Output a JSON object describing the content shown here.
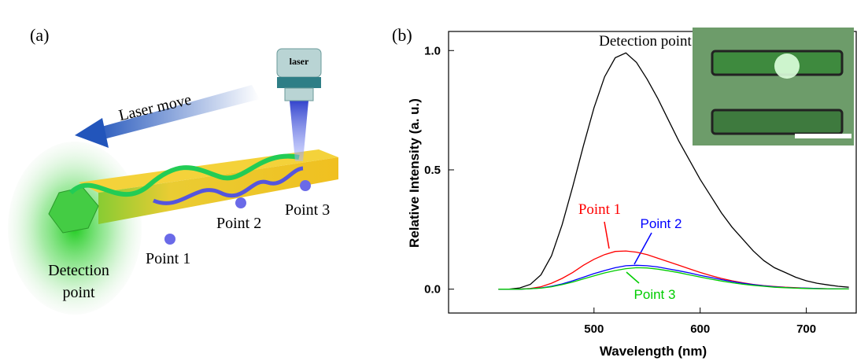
{
  "diagram": {
    "panel_label": "(a)",
    "device_label": "laser",
    "motion_label": "Laser move",
    "points": [
      "Point 1",
      "Point 2",
      "Point 3"
    ],
    "detection_label": [
      "Detection",
      "point"
    ]
  },
  "chart_data": {
    "type": "line",
    "panel_label": "(b)",
    "x_label": "Wavelength (nm)",
    "y_label": "Relative Intensity (a. u.)",
    "xlim": [
      363,
      747
    ],
    "ylim": [
      -0.1,
      1.08
    ],
    "xticks": [
      500,
      600,
      700
    ],
    "yticks": [
      {
        "value": 0,
        "label": "0.0"
      },
      0.5,
      {
        "value": 1,
        "label": "1.0"
      }
    ],
    "x": [
      410,
      420,
      430,
      440,
      450,
      460,
      470,
      480,
      490,
      500,
      510,
      520,
      530,
      540,
      550,
      560,
      570,
      580,
      590,
      600,
      610,
      620,
      630,
      640,
      650,
      660,
      670,
      680,
      690,
      700,
      710,
      720,
      730,
      740
    ],
    "series": [
      {
        "name": "Detection point",
        "color": "#000000",
        "values": [
          0,
          0,
          0.005,
          0.02,
          0.06,
          0.14,
          0.27,
          0.43,
          0.6,
          0.76,
          0.89,
          0.97,
          0.99,
          0.95,
          0.88,
          0.8,
          0.71,
          0.62,
          0.54,
          0.46,
          0.39,
          0.32,
          0.26,
          0.21,
          0.16,
          0.12,
          0.09,
          0.07,
          0.05,
          0.035,
          0.025,
          0.018,
          0.012,
          0.008
        ]
      },
      {
        "name": "Point 1",
        "color": "#ff0000",
        "values": [
          0,
          0,
          0,
          0.003,
          0.01,
          0.025,
          0.045,
          0.07,
          0.1,
          0.125,
          0.145,
          0.158,
          0.16,
          0.155,
          0.145,
          0.13,
          0.115,
          0.1,
          0.085,
          0.07,
          0.057,
          0.045,
          0.035,
          0.027,
          0.02,
          0.015,
          0.011,
          0.008,
          0.006,
          0.004,
          0.003,
          0.002,
          0.001,
          0.001
        ]
      },
      {
        "name": "Point 2",
        "color": "#0000ff",
        "values": [
          0,
          0,
          0,
          0.002,
          0.005,
          0.012,
          0.022,
          0.035,
          0.05,
          0.065,
          0.078,
          0.09,
          0.098,
          0.1,
          0.098,
          0.093,
          0.085,
          0.077,
          0.068,
          0.058,
          0.049,
          0.04,
          0.032,
          0.025,
          0.019,
          0.014,
          0.01,
          0.007,
          0.005,
          0.004,
          0.003,
          0.002,
          0.001,
          0.001
        ]
      },
      {
        "name": "Point 3",
        "color": "#00cc00",
        "values": [
          0,
          0,
          0,
          0.002,
          0.004,
          0.01,
          0.019,
          0.03,
          0.043,
          0.056,
          0.068,
          0.078,
          0.086,
          0.09,
          0.089,
          0.084,
          0.077,
          0.069,
          0.06,
          0.051,
          0.042,
          0.034,
          0.027,
          0.021,
          0.016,
          0.012,
          0.008,
          0.006,
          0.004,
          0.003,
          0.002,
          0.002,
          0.001,
          0.001
        ]
      }
    ]
  }
}
